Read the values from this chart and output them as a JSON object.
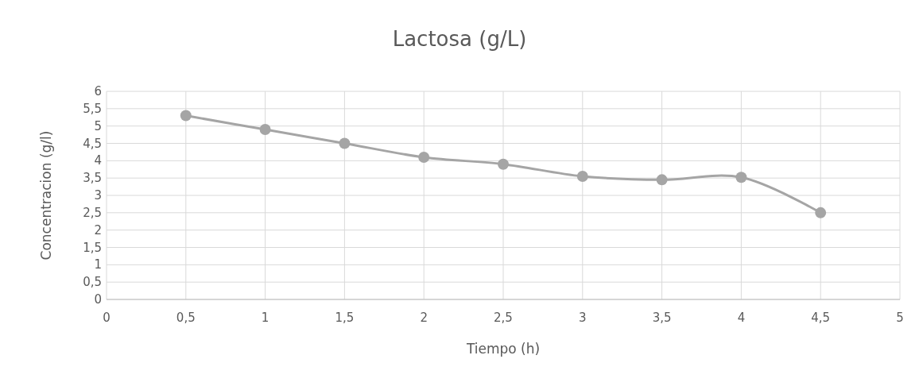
{
  "chart_data": {
    "type": "line",
    "title": "Lactosa (g/L)",
    "xlabel": "Tiempo (h)",
    "ylabel": "Concentracion (g/l)",
    "x": [
      0.5,
      1,
      1.5,
      2,
      2.5,
      3,
      3.5,
      4,
      4.5
    ],
    "series": [
      {
        "color": "#a5a5a5",
        "values": [
          5.3,
          4.9,
          4.5,
          4.1,
          3.9,
          3.55,
          3.45,
          3.52,
          2.5
        ]
      }
    ],
    "xlim": [
      0,
      5
    ],
    "xticks": [
      0,
      {
        "value": 0.5,
        "label": "0,5"
      },
      1,
      {
        "value": 1.5,
        "label": "1,5"
      },
      2,
      {
        "value": 2.5,
        "label": "2,5"
      },
      3,
      {
        "value": 3.5,
        "label": "3,5"
      },
      4,
      {
        "value": 4.5,
        "label": "4,5"
      },
      5
    ],
    "ylim": [
      0,
      6
    ],
    "yticks": [
      0,
      {
        "value": 0.5,
        "label": "0,5"
      },
      1,
      {
        "value": 1.5,
        "label": "1,5"
      },
      2,
      {
        "value": 2.5,
        "label": "2,5"
      },
      3,
      {
        "value": 3.5,
        "label": "3,5"
      },
      4,
      {
        "value": 4.5,
        "label": "4,5"
      },
      5,
      {
        "value": 5.5,
        "label": "5,5"
      },
      6
    ],
    "grid": true,
    "marker": "circle",
    "line_style": "solid"
  }
}
